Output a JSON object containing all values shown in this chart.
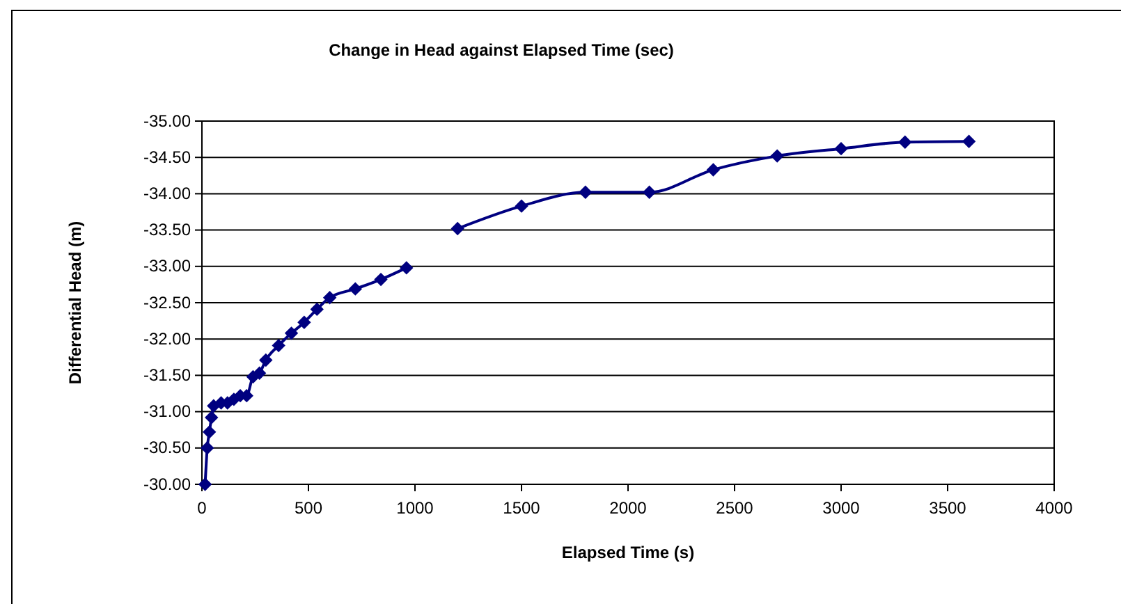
{
  "chart_data": {
    "type": "line",
    "title": "Change in Head against Elapsed Time (sec)",
    "xlabel": "Elapsed Time (s)",
    "ylabel": "Differential Head (m)",
    "xlim": [
      0,
      4000
    ],
    "xticks": [
      0,
      500,
      1000,
      1500,
      2000,
      2500,
      3000,
      3500,
      4000
    ],
    "ylim": [
      -30,
      -35
    ],
    "yticks": [
      {
        "value": -30,
        "label": "-30.00"
      },
      {
        "value": -30.5,
        "label": "-30.50"
      },
      {
        "value": -31,
        "label": "-31.00"
      },
      {
        "value": -31.5,
        "label": "-31.50"
      },
      {
        "value": -32,
        "label": "-32.00"
      },
      {
        "value": -32.5,
        "label": "-32.50"
      },
      {
        "value": -33,
        "label": "-33.00"
      },
      {
        "value": -33.5,
        "label": "-33.50"
      },
      {
        "value": -34,
        "label": "-34.00"
      },
      {
        "value": -34.5,
        "label": "-34.50"
      },
      {
        "value": -35,
        "label": "-35.00"
      }
    ],
    "grid": "y",
    "marker": "diamond",
    "line_style": "solid",
    "series": [
      {
        "color": "#000080",
        "x": [
          15,
          25,
          35,
          45,
          55,
          90,
          120,
          150,
          180,
          210,
          240,
          270,
          300,
          360,
          420,
          480,
          540,
          600,
          720,
          840,
          960
        ],
        "values": [
          -30.0,
          -30.5,
          -30.72,
          -30.92,
          -31.08,
          -31.12,
          -31.12,
          -31.17,
          -31.22,
          -31.22,
          -31.48,
          -31.53,
          -31.71,
          -31.91,
          -32.08,
          -32.23,
          -32.41,
          -32.57,
          -32.69,
          -32.82,
          -32.98
        ]
      },
      {
        "color": "#000080",
        "x": [
          1200,
          1500,
          1800,
          2100,
          2400,
          2700,
          3000,
          3300,
          3600
        ],
        "values": [
          -33.52,
          -33.83,
          -34.02,
          -34.02,
          -34.33,
          -34.52,
          -34.62,
          -34.71,
          -34.72
        ]
      }
    ]
  }
}
